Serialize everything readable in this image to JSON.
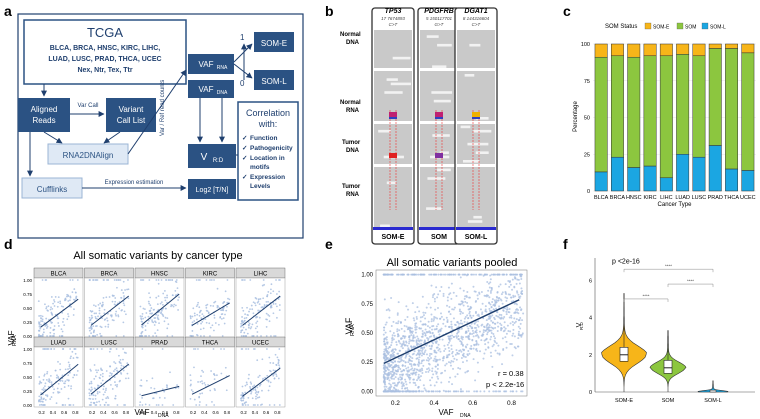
{
  "panel_letters": [
    "a",
    "b",
    "c",
    "d",
    "e",
    "f"
  ],
  "panel_a": {
    "tcga_title": "TCGA",
    "tcga_line1": "BLCA, BRCA, HNSC, KIRC, LIHC,",
    "tcga_line2": "LUAD, LUSC, PRAD, THCA, UCEC",
    "tcga_line3": "Nex, Ntr, Tex, Ttr",
    "aligned_reads": [
      "Aligned",
      "Reads"
    ],
    "var_call": "Var Call",
    "variant_call_list": [
      "Variant",
      "Call List"
    ],
    "rna2dnalign": "RNA2DNAlign",
    "cufflinks": "Cufflinks",
    "expression_estimation": "Expression estimation",
    "vaf_rna": "VAF",
    "vaf_rna_sub": "RNA",
    "vaf_dna": "VAF",
    "vaf_dna_sub": "DNA",
    "vrd": "V",
    "vrd_sub": "R:D",
    "log2": "Log2 [T/N]",
    "som_e": "SOM-E",
    "som_l": "SOM-L",
    "axis_1": "1",
    "axis_0": "0",
    "var_ref": "Var / Ref read counts",
    "correlation_title": [
      "Correlation",
      "with:"
    ],
    "correlation_items": [
      "Function",
      "Pathogenicity",
      "Location in",
      "motifs",
      "Expression",
      "Levels"
    ]
  },
  "panel_b": {
    "genes": [
      {
        "name": "TP53",
        "pos": "17 7674893",
        "change": "C>T"
      },
      {
        "name": "PDGFRB",
        "pos": "5 150117701",
        "change": "G>T"
      },
      {
        "name": "DGAT1",
        "pos": "8 144316604",
        "change": "C>T"
      }
    ],
    "rows": [
      [
        "Normal",
        "DNA"
      ],
      [
        "Normal",
        "RNA"
      ],
      [
        "Tumor",
        "DNA"
      ],
      [
        "Tumor",
        "RNA"
      ]
    ],
    "footer": [
      "SOM-E",
      "SOM",
      "SOM-L"
    ]
  },
  "panel_c": {
    "chart_data": {
      "type": "bar",
      "stacked": true,
      "legend_title": "SOM Status",
      "categories": [
        "BLCA",
        "BRCA",
        "HNSC",
        "KIRC",
        "LIHC",
        "LUAD",
        "LUSC",
        "PRAD",
        "THCA",
        "UCEC"
      ],
      "series": [
        {
          "name": "SOM-L",
          "values": [
            13,
            23,
            16,
            17,
            9,
            25,
            23,
            31,
            15,
            14
          ]
        },
        {
          "name": "SOM",
          "values": [
            78,
            69,
            75,
            75,
            83,
            68,
            69,
            66,
            82,
            80
          ]
        },
        {
          "name": "SOM-E",
          "values": [
            9,
            8,
            9,
            8,
            8,
            7,
            8,
            3,
            3,
            6
          ]
        }
      ],
      "ylabel": "Percentage",
      "xlabel": "Cancer Type",
      "yticks": [
        "0",
        "25",
        "50",
        "75",
        "100"
      ],
      "ylim": [
        0,
        100
      ],
      "colors": {
        "SOM-E": "#f7b519",
        "SOM": "#8cc63f",
        "SOM-L": "#1ba6e2"
      }
    }
  },
  "panel_d": {
    "chart_data": {
      "type": "scatter",
      "title": "All somatic variants by cancer type",
      "facets": [
        "BLCA",
        "BRCA",
        "HNSC",
        "KIRC",
        "LIHC",
        "LUAD",
        "LUSC",
        "PRAD",
        "THCA",
        "UCEC"
      ],
      "xlabel": "VAF",
      "xlabel_sub": "DNA",
      "ylabel": "VAF",
      "ylabel_sub": "RNA",
      "xticks": [
        "0.2",
        "0.4",
        "0.6",
        "0.8"
      ],
      "yticks": [
        "0.00",
        "0.25",
        "0.50",
        "0.75",
        "1.00"
      ],
      "xlim": [
        0.1,
        0.9
      ],
      "ylim": [
        0,
        1
      ],
      "density": [
        1.0,
        1.0,
        1.0,
        0.75,
        1.0,
        1.0,
        1.0,
        0.25,
        0.35,
        0.85
      ],
      "fits": [
        {
          "intercept": 0.02,
          "slope": 0.75
        },
        {
          "intercept": 0.05,
          "slope": 0.78
        },
        {
          "intercept": 0.05,
          "slope": 0.82
        },
        {
          "intercept": 0.08,
          "slope": 0.6
        },
        {
          "intercept": 0.05,
          "slope": 0.78
        },
        {
          "intercept": 0.03,
          "slope": 0.82
        },
        {
          "intercept": 0.05,
          "slope": 0.8
        },
        {
          "intercept": 0.12,
          "slope": 0.25
        },
        {
          "intercept": 0.1,
          "slope": 0.5
        },
        {
          "intercept": 0.02,
          "slope": 0.75
        }
      ]
    }
  },
  "panel_e": {
    "chart_data": {
      "type": "scatter",
      "title": "All somatic variants pooled",
      "xlabel": "VAF",
      "xlabel_sub": "DNA",
      "ylabel": "VAF",
      "ylabel_sub": "RNA",
      "xticks": [
        "0.2",
        "0.4",
        "0.6",
        "0.8"
      ],
      "yticks": [
        "0.00",
        "0.25",
        "0.50",
        "0.75",
        "1.00"
      ],
      "xlim": [
        0.1,
        0.88
      ],
      "ylim": [
        -0.04,
        1.04
      ],
      "fit": {
        "intercept": 0.13,
        "slope": 0.78
      },
      "r_text": "r = 0.38",
      "p_text": "p < 2.2e-16"
    }
  },
  "panel_f": {
    "chart_data": {
      "type": "violin",
      "categories": [
        "SOM-E",
        "SOM",
        "SOM-L"
      ],
      "medians": [
        2.0,
        1.3,
        0.03
      ],
      "q1": [
        1.65,
        1.0,
        0.0
      ],
      "q3": [
        2.4,
        1.7,
        0.08
      ],
      "whisker_high": [
        5.3,
        3.3,
        0.6
      ],
      "ylabel": "V",
      "ylabel_sub": "R:D",
      "yticks": [
        "0",
        "2",
        "4",
        "6"
      ],
      "ylim": [
        0,
        7.2
      ],
      "pvalue": "p <2e-16",
      "sig_marks": [
        "****",
        "****",
        "****"
      ],
      "colors": {
        "SOM-E": "#f7b519",
        "SOM": "#8cc63f",
        "SOM-L": "#1ba6e2"
      }
    }
  }
}
